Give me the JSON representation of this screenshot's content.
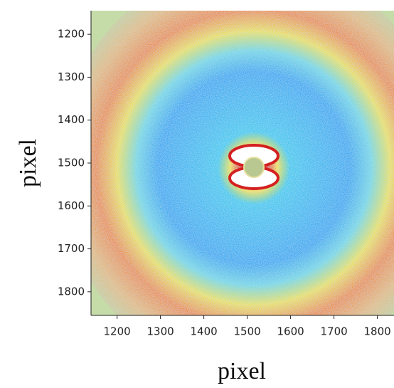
{
  "chart_data": {
    "type": "heatmap",
    "xlabel": "pixel",
    "ylabel": "pixel",
    "xlim": [
      1140,
      1840
    ],
    "xticks": [
      1200,
      1300,
      1400,
      1500,
      1600,
      1700,
      1800
    ],
    "ylim": [
      1145,
      1855
    ],
    "yticks": [
      1200,
      1300,
      1400,
      1500,
      1600,
      1700,
      1800
    ],
    "y_inverted": true
  }
}
